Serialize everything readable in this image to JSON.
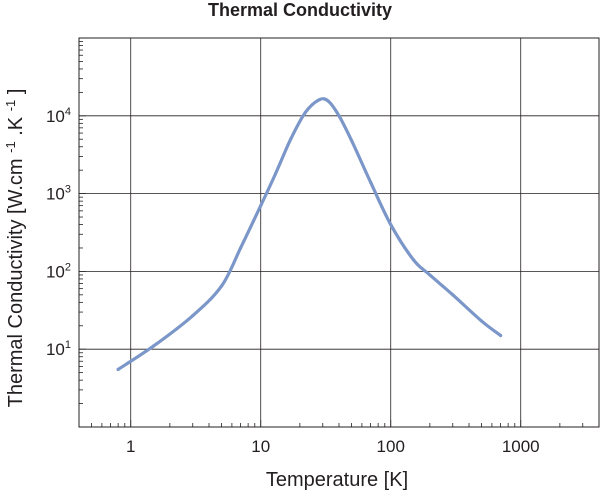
{
  "chart_data": {
    "type": "line",
    "title": "Thermal Conductivity",
    "xlabel": "Temperature [K]",
    "ylabel": {
      "prefix": "Thermal Conductivity [W.cm",
      "exp1": "-1",
      "middle": ".K",
      "exp2": "-1",
      "suffix": "]"
    },
    "xscale": "log",
    "yscale": "log",
    "xlim": [
      0.4,
      4000
    ],
    "ylim": [
      1,
      100000
    ],
    "grid": true,
    "xticks": [
      {
        "value": 1,
        "label": "1"
      },
      {
        "value": 10,
        "label": "10"
      },
      {
        "value": 100,
        "label": "100"
      },
      {
        "value": 1000,
        "label": "1000"
      }
    ],
    "yticks": [
      {
        "value": 10,
        "base": "10",
        "exp": "1"
      },
      {
        "value": 100,
        "base": "10",
        "exp": "2"
      },
      {
        "value": 1000,
        "base": "10",
        "exp": "3"
      },
      {
        "value": 10000,
        "base": "10",
        "exp": "4"
      }
    ],
    "series": [
      {
        "color": "#7b96c8",
        "x": [
          0.8,
          1.5,
          3.0,
          5.0,
          7.0,
          10.0,
          13.0,
          17.0,
          22.0,
          28.0,
          33.0,
          40.0,
          50.0,
          70.0,
          100.0,
          150.0,
          200.0,
          300.0,
          500.0,
          700.0
        ],
        "y": [
          5.5,
          11.0,
          27.0,
          65.0,
          200.0,
          700.0,
          1800.0,
          5000.0,
          11000.0,
          16000.0,
          15500.0,
          10000.0,
          4800.0,
          1400.0,
          400.0,
          140.0,
          90.0,
          50.0,
          23.0,
          15.0
        ]
      }
    ]
  }
}
